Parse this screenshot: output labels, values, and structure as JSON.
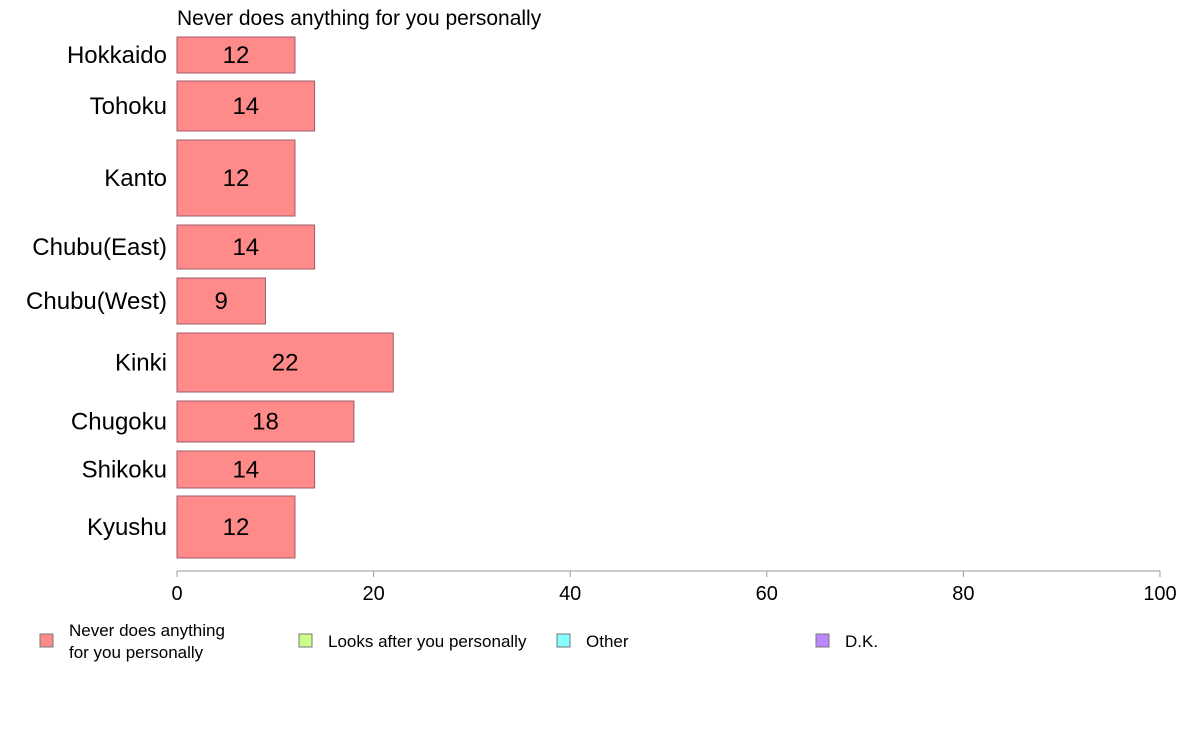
{
  "chart_data": {
    "type": "bar",
    "orientation": "horizontal",
    "title": "Never does anything for you personally",
    "categories": [
      "Hokkaido",
      "Tohoku",
      "Kanto",
      "Chubu(East)",
      "Chubu(West)",
      "Kinki",
      "Chugoku",
      "Shikoku",
      "Kyushu"
    ],
    "series": [
      {
        "name": "Never does anything for you personally",
        "values": [
          12,
          14,
          12,
          14,
          9,
          22,
          18,
          14,
          12
        ],
        "color": "#ff8a8a"
      }
    ],
    "xlim": [
      0,
      100
    ],
    "xticks": [
      0,
      20,
      40,
      60,
      80,
      100
    ],
    "grid": false,
    "legend": {
      "position": "bottom",
      "items": [
        {
          "label_lines": [
            "Never does anything",
            "for you personally"
          ],
          "color": "#ff8a8a"
        },
        {
          "label_lines": [
            "Looks after you personally"
          ],
          "color": "#ccff88"
        },
        {
          "label_lines": [
            "Other"
          ],
          "color": "#88ffff"
        },
        {
          "label_lines": [
            "D.K."
          ],
          "color": "#bb88ff"
        }
      ]
    }
  }
}
